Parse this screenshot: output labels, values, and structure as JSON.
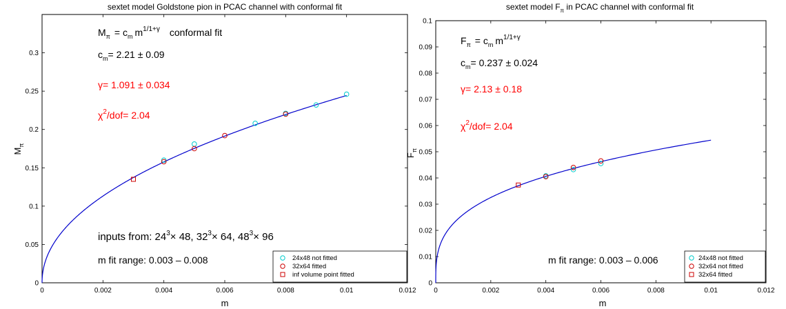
{
  "colors": {
    "fit_curve": "#0000cc",
    "cyan_marker": "#00cccc",
    "red_marker": "#cc0000",
    "annotation_red": "#ff0000"
  },
  "chart_data": [
    {
      "type": "scatter",
      "title": "sextet model Goldstone pion in PCAC channel with conformal fit",
      "xlabel": "m",
      "ylabel_main": "M",
      "ylabel_sub": "π",
      "xlim": [
        0,
        0.012
      ],
      "ylim": [
        0,
        0.35
      ],
      "xticks": [
        0,
        0.002,
        0.004,
        0.006,
        0.008,
        0.01,
        0.012
      ],
      "xtick_labels": [
        "0",
        "0.002",
        "0.004",
        "0.006",
        "0.008",
        "0.01",
        "0.012"
      ],
      "yticks": [
        0,
        0.05,
        0.1,
        0.15,
        0.2,
        0.25,
        0.3
      ],
      "ytick_labels": [
        "0",
        "0.05",
        "0.1",
        "0.15",
        "0.2",
        "0.25",
        "0.3"
      ],
      "fit": {
        "c": 2.21,
        "gamma": 1.091,
        "xmax": 0.01
      },
      "annotations": {
        "formula_lhs": "M",
        "formula_lhs_sub": "π",
        "formula_mid": "= c",
        "formula_mid_sub": "m",
        "formula_m": "m",
        "formula_exp": "1/1+γ",
        "formula_note": "conformal fit",
        "c_label": "c",
        "c_sub": "m",
        "c_value": "=  2.21 ± 0.09",
        "gamma_text": "γ=  1.091 ± 0.034",
        "chi_prefix": "χ",
        "chi_sup": "2",
        "chi_value": "/dof= 2.04",
        "inputs_prefix": "inputs from: 24",
        "inputs_sup1": "3",
        "inputs_mid1": "× 48, 32",
        "inputs_sup2": "3",
        "inputs_mid2": "× 64, 48",
        "inputs_sup3": "3",
        "inputs_end": "× 96",
        "fit_range": "m fit range:  0.003 – 0.008"
      },
      "legend_position": "bottom-right",
      "series": [
        {
          "name": "24x48 not fitted",
          "marker": "circle",
          "color": "#00cccc",
          "x": [
            0.004,
            0.005,
            0.007,
            0.008,
            0.009,
            0.01
          ],
          "y": [
            0.16,
            0.181,
            0.208,
            0.221,
            0.232,
            0.246
          ]
        },
        {
          "name": "32x64 fitted",
          "marker": "circle",
          "color": "#cc0000",
          "x": [
            0.004,
            0.005,
            0.006,
            0.008
          ],
          "y": [
            0.158,
            0.175,
            0.192,
            0.22
          ]
        },
        {
          "name": "inf volume point fitted",
          "marker": "square",
          "color": "#cc0000",
          "x": [
            0.003
          ],
          "y": [
            0.135
          ]
        }
      ]
    },
    {
      "type": "scatter",
      "title_prefix": "sextet model F",
      "title_sub": "π",
      "title_suffix": " in PCAC channel with conformal fit",
      "xlabel": "m",
      "ylabel_main": "F",
      "ylabel_sub": "π",
      "xlim": [
        0,
        0.012
      ],
      "ylim": [
        0,
        0.1
      ],
      "xticks": [
        0,
        0.002,
        0.004,
        0.006,
        0.008,
        0.01,
        0.012
      ],
      "xtick_labels": [
        "0",
        "0.002",
        "0.004",
        "0.006",
        "0.008",
        "0.01",
        "0.012"
      ],
      "yticks": [
        0,
        0.01,
        0.02,
        0.03,
        0.04,
        0.05,
        0.06,
        0.07,
        0.08,
        0.09,
        0.1
      ],
      "ytick_labels": [
        "0",
        "0.01",
        "0.02",
        "0.03",
        "0.04",
        "0.05",
        "0.06",
        "0.07",
        "0.08",
        "0.09",
        "0.1"
      ],
      "fit": {
        "c": 0.237,
        "gamma": 2.13,
        "xmax": 0.01
      },
      "annotations": {
        "formula_lhs": "F",
        "formula_lhs_sub": "π",
        "formula_mid": "= c",
        "formula_mid_sub": "m",
        "formula_m": "m",
        "formula_exp": "1/1+γ",
        "c_label": "c",
        "c_sub": "m",
        "c_value": "=  0.237 ± 0.024",
        "gamma_text": "γ=  2.13 ± 0.18",
        "chi_prefix": "χ",
        "chi_sup": "2",
        "chi_value": "/dof= 2.04",
        "fit_range": "m fit range:  0.003 – 0.006"
      },
      "legend_position": "bottom-right",
      "series": [
        {
          "name": "24x48 not fitted",
          "marker": "circle",
          "color": "#00cccc",
          "x": [
            0.004,
            0.005,
            0.006
          ],
          "y": [
            0.0408,
            0.0432,
            0.0455
          ]
        },
        {
          "name": "32x64 not fitted",
          "marker": "circle",
          "color": "#cc0000",
          "x": [
            0.004,
            0.005,
            0.006
          ],
          "y": [
            0.0405,
            0.044,
            0.0465
          ]
        },
        {
          "name": "32x64 fitted",
          "marker": "square",
          "color": "#cc0000",
          "x": [
            0.003
          ],
          "y": [
            0.0373
          ]
        }
      ]
    }
  ]
}
